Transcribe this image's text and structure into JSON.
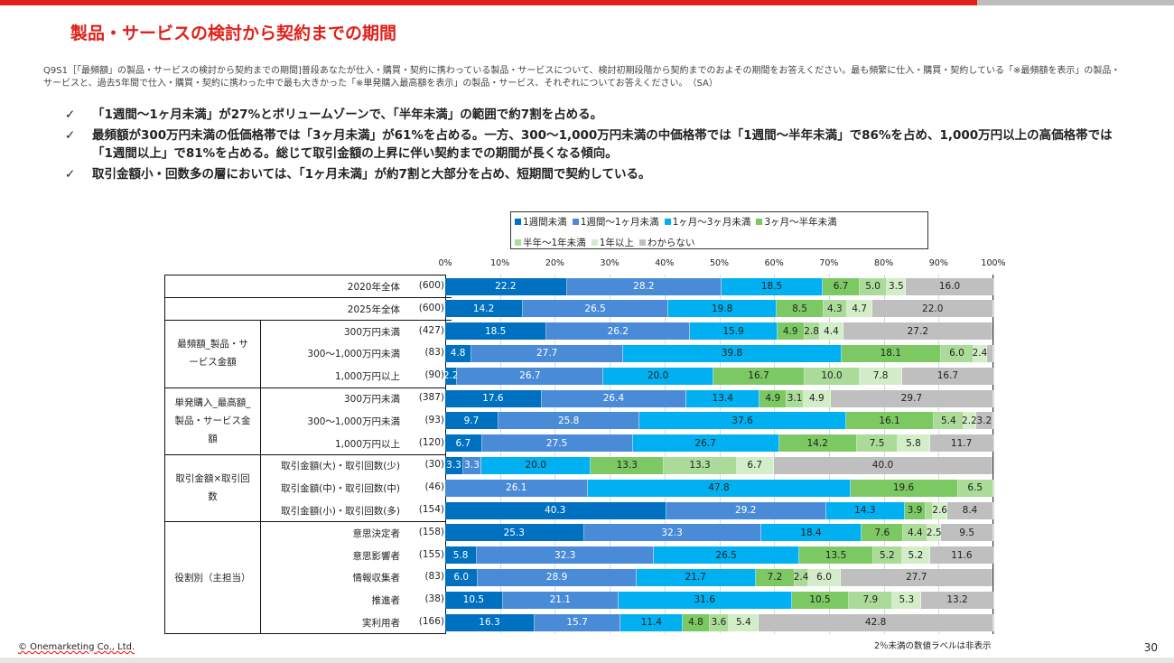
{
  "header": {
    "title": "製品・サービスの検討から契約までの期間"
  },
  "question": "Q9S1［「最頻額」の製品・サービスの検討から契約までの期間]普段あなたが仕入・購買・契約に携わっている製品・サービスについて、検討初期段階から契約までのおよその期間をお答えください。最も頻繁に仕入・購買・契約している「※最頻額を表示」の製品・サービスと、過去5年間で仕入・購買・契約に携わった中で最も大きかった「※単発購入最高額を表示」の製品・サービス、それぞれについてお答えください。　（SA）",
  "bullets": [
    {
      "mark": "✓",
      "text": "「1週間～1ヶ月未満」が27%とボリュームゾーンで、「半年未満」の範囲で約7割を占める。"
    },
    {
      "mark": "✓",
      "text": "最頻額が300万円未満の低価格帯では「3ヶ月未満」が61%を占める。一方、300～1,000万円未満の中価格帯では「1週間～半年未満」で86%を占め、1,000万円以上の高価格帯では「1週間以上」で81%を占める。総じて取引金額の上昇に伴い契約までの期間が長くなる傾向。"
    },
    {
      "mark": "✓",
      "text": "取引金額小・回数多の層においては、「1ヶ月未満」が約7割と大部分を占め、短期間で契約している。"
    }
  ],
  "chart_data": {
    "type": "bar",
    "orientation": "horizontal-stacked-100",
    "xlim": [
      0,
      100
    ],
    "xticks": [
      "0%",
      "10%",
      "20%",
      "30%",
      "40%",
      "50%",
      "60%",
      "70%",
      "80%",
      "90%",
      "100%"
    ],
    "legend_position": "top",
    "series": [
      {
        "name": "1週間未満",
        "color": "#0070C0",
        "text": "#fff"
      },
      {
        "name": "1週間～1ヶ月未満",
        "color": "#4A8BD8",
        "text": "#fff"
      },
      {
        "name": "1ヶ月～3ヶ月未満",
        "color": "#00B0F0",
        "text": "#222"
      },
      {
        "name": "3ヶ月～半年未満",
        "color": "#7CC963",
        "text": "#222"
      },
      {
        "name": "半年～1年未満",
        "color": "#AADB98",
        "text": "#222"
      },
      {
        "name": "1年以上",
        "color": "#D3EDC8",
        "text": "#222"
      },
      {
        "name": "わからない",
        "color": "#BFBFBF",
        "text": "#222"
      }
    ],
    "groups": [
      {
        "label": "",
        "rows": [
          0
        ]
      },
      {
        "label": "",
        "rows": [
          1
        ]
      },
      {
        "label": "最頻額_製品・サービス金額",
        "rows": [
          2,
          3,
          4
        ]
      },
      {
        "label": "単発購入_最高額_製品・サービス金額",
        "rows": [
          5,
          6,
          7
        ]
      },
      {
        "label": "取引金額×取引回数",
        "rows": [
          8,
          9,
          10
        ]
      },
      {
        "label": "役割別（主担当）",
        "rows": [
          11,
          12,
          13,
          14,
          15
        ]
      }
    ],
    "rows": [
      {
        "label": "2020年全体",
        "n": "(600)",
        "values": [
          22.2,
          28.2,
          18.5,
          6.7,
          5.0,
          3.5,
          16.0
        ]
      },
      {
        "label": "2025年全体",
        "n": "(600)",
        "values": [
          14.2,
          26.5,
          19.8,
          8.5,
          4.3,
          4.7,
          22.0
        ]
      },
      {
        "label": "300万円未満",
        "n": "(427)",
        "values": [
          18.5,
          26.2,
          15.9,
          4.9,
          2.8,
          4.4,
          27.2
        ]
      },
      {
        "label": "300～1,000万円未満",
        "n": "(83)",
        "values": [
          4.8,
          27.7,
          39.8,
          18.1,
          6.0,
          2.4,
          1.2
        ]
      },
      {
        "label": "1,000万円以上",
        "n": "(90)",
        "values": [
          2.2,
          26.7,
          20.0,
          16.7,
          10.0,
          7.8,
          16.7
        ]
      },
      {
        "label": "300万円未満",
        "n": "(387)",
        "values": [
          17.6,
          26.4,
          13.4,
          4.9,
          3.1,
          4.9,
          29.7
        ]
      },
      {
        "label": "300～1,000万円未満",
        "n": "(93)",
        "values": [
          9.7,
          25.8,
          37.6,
          16.1,
          5.4,
          2.2,
          3.2
        ]
      },
      {
        "label": "1,000万円以上",
        "n": "(120)",
        "values": [
          6.7,
          27.5,
          26.7,
          14.2,
          7.5,
          5.8,
          11.7
        ]
      },
      {
        "label": "取引金額(大)・取引回数(少)",
        "n": "(30)",
        "values": [
          3.3,
          3.3,
          20.0,
          13.3,
          13.3,
          6.7,
          40.0
        ]
      },
      {
        "label": "取引金額(中)・取引回数(中)",
        "n": "(46)",
        "values": [
          0,
          26.1,
          47.8,
          19.6,
          6.5,
          0,
          0
        ]
      },
      {
        "label": "取引金額(小)・取引回数(多)",
        "n": "(154)",
        "values": [
          40.3,
          29.2,
          14.3,
          3.9,
          1.3,
          2.6,
          8.4
        ]
      },
      {
        "label": "意思決定者",
        "n": "(158)",
        "values": [
          25.3,
          32.3,
          18.4,
          7.6,
          4.4,
          2.5,
          9.5
        ]
      },
      {
        "label": "意思影響者",
        "n": "(155)",
        "values": [
          5.8,
          32.3,
          26.5,
          13.5,
          5.2,
          5.2,
          11.6
        ]
      },
      {
        "label": "情報収集者",
        "n": "(83)",
        "values": [
          6.0,
          28.9,
          21.7,
          7.2,
          2.4,
          6.0,
          27.7
        ]
      },
      {
        "label": "推進者",
        "n": "(38)",
        "values": [
          10.5,
          21.1,
          31.6,
          10.5,
          7.9,
          5.3,
          13.2
        ]
      },
      {
        "label": "実利用者",
        "n": "(166)",
        "values": [
          16.3,
          15.7,
          11.4,
          4.8,
          3.6,
          5.4,
          42.8
        ]
      }
    ],
    "label_threshold": 2,
    "note": "2％未満の数値ラベルは非表示"
  },
  "footer": {
    "copyright": "© Onemarketing Co., Ltd.",
    "page": "30"
  }
}
